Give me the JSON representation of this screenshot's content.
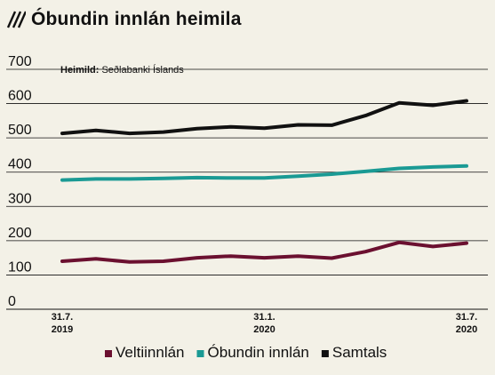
{
  "header": {
    "title": "Óbundin innlán heimila"
  },
  "chart_data": {
    "type": "line",
    "title": "Óbundin innlán heimila",
    "source_label": "Heimild:",
    "source_text": " Seðlabanki Íslands",
    "ylim": [
      0,
      700
    ],
    "yticks": [
      "0",
      "100",
      "200",
      "300",
      "400",
      "500",
      "600",
      "700"
    ],
    "xticks": [
      {
        "index": 0,
        "line1": "31.7.",
        "line2": "2019"
      },
      {
        "index": 6,
        "line1": "31.1.",
        "line2": "2020"
      },
      {
        "index": 12,
        "line1": "31.7.",
        "line2": "2020"
      }
    ],
    "x": [
      "2019-07",
      "2019-08",
      "2019-09",
      "2019-10",
      "2019-11",
      "2019-12",
      "2020-01",
      "2020-02",
      "2020-03",
      "2020-04",
      "2020-05",
      "2020-06",
      "2020-07"
    ],
    "series": [
      {
        "name": "Veltiinnlán",
        "color": "#6b1030",
        "values": [
          140,
          147,
          138,
          140,
          150,
          155,
          150,
          155,
          149,
          168,
          195,
          183,
          193
        ]
      },
      {
        "name": "Óbundin innlán",
        "color": "#1a9a94",
        "values": [
          377,
          380,
          380,
          382,
          384,
          383,
          383,
          388,
          394,
          402,
          411,
          415,
          418
        ]
      },
      {
        "name": "Samtals",
        "color": "#111111",
        "values": [
          513,
          522,
          513,
          517,
          527,
          532,
          528,
          538,
          537,
          565,
          602,
          595,
          608
        ]
      }
    ],
    "grid": true,
    "legend_position": "bottom"
  }
}
